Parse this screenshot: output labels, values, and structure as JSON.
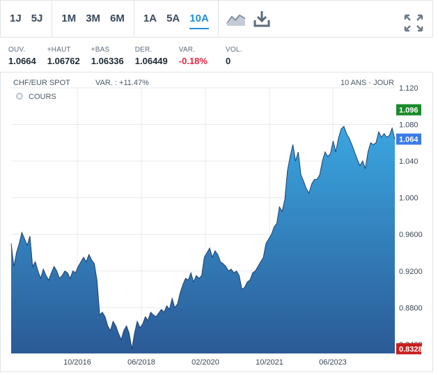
{
  "toolbar": {
    "periods_short": [
      "1J",
      "5J"
    ],
    "periods_mid": [
      "1M",
      "3M",
      "6M"
    ],
    "periods_long": [
      "1A",
      "5A",
      "10A"
    ],
    "active_period": "10A",
    "icons": [
      "area-chart-icon",
      "download-icon",
      "expand-icon"
    ]
  },
  "stats": [
    {
      "label": "OUV.",
      "value": "1.0664"
    },
    {
      "label": "+HAUT",
      "value": "1.06762"
    },
    {
      "label": "+BAS",
      "value": "1.06336"
    },
    {
      "label": "DER.",
      "value": "1.06449"
    },
    {
      "label": "VAR.",
      "value": "-0.18%"
    },
    {
      "label": "VOL.",
      "value": "0"
    }
  ],
  "chart_meta": {
    "instrument": "CHF/EUR SPOT",
    "variation": "VAR. : +11.47%",
    "range": "10 ANS · JOUR",
    "legend": "COURS"
  },
  "colors": {
    "accent": "#1c8fd6",
    "negative": "#e2253d",
    "area_top": "#3aa6e0",
    "area_bottom": "#2b5a96",
    "max_badge": "#1a8a2b",
    "last_badge": "#3b7be8",
    "min_badge": "#c81e1e"
  },
  "chart_data": {
    "type": "area",
    "title": "CHF/EUR SPOT",
    "ylim": [
      0.83,
      1.12
    ],
    "y_ticks": [
      "1.120",
      "1.080",
      "1.040",
      "1.000",
      "0.9600",
      "0.9200",
      "0.8800",
      "0.8400"
    ],
    "x_ticks": [
      "10/2016",
      "06/2018",
      "02/2020",
      "10/2021",
      "06/2023"
    ],
    "grid": true,
    "badges": {
      "max": "1.096",
      "last": "1.064",
      "min": "0.8328"
    },
    "series": [
      {
        "values": [
          0.95,
          0.925,
          0.94,
          0.95,
          0.962,
          0.955,
          0.948,
          0.958,
          0.925,
          0.93,
          0.92,
          0.912,
          0.922,
          0.915,
          0.91,
          0.918,
          0.925,
          0.92,
          0.912,
          0.915,
          0.92,
          0.918,
          0.912,
          0.92,
          0.918,
          0.925,
          0.93,
          0.935,
          0.93,
          0.938,
          0.932,
          0.928,
          0.91,
          0.872,
          0.875,
          0.87,
          0.86,
          0.855,
          0.865,
          0.86,
          0.852,
          0.845,
          0.855,
          0.86,
          0.852,
          0.835,
          0.852,
          0.865,
          0.858,
          0.862,
          0.87,
          0.866,
          0.875,
          0.872,
          0.87,
          0.874,
          0.878,
          0.875,
          0.882,
          0.878,
          0.89,
          0.88,
          0.884,
          0.896,
          0.905,
          0.912,
          0.91,
          0.918,
          0.908,
          0.915,
          0.912,
          0.915,
          0.935,
          0.94,
          0.945,
          0.935,
          0.942,
          0.938,
          0.93,
          0.928,
          0.925,
          0.92,
          0.922,
          0.918,
          0.92,
          0.915,
          0.9,
          0.902,
          0.908,
          0.91,
          0.918,
          0.92,
          0.925,
          0.93,
          0.935,
          0.95,
          0.955,
          0.96,
          0.968,
          0.972,
          0.99,
          0.985,
          0.998,
          1.03,
          1.045,
          1.058,
          1.04,
          1.05,
          1.025,
          1.018,
          1.01,
          1.005,
          1.015,
          1.02,
          1.02,
          1.025,
          1.04,
          1.05,
          1.045,
          1.048,
          1.062,
          1.05,
          1.065,
          1.075,
          1.078,
          1.07,
          1.065,
          1.058,
          1.05,
          1.042,
          1.035,
          1.04,
          1.032,
          1.05,
          1.06,
          1.058,
          1.06,
          1.072,
          1.066,
          1.07,
          1.066,
          1.068,
          1.076,
          1.064
        ]
      }
    ]
  }
}
